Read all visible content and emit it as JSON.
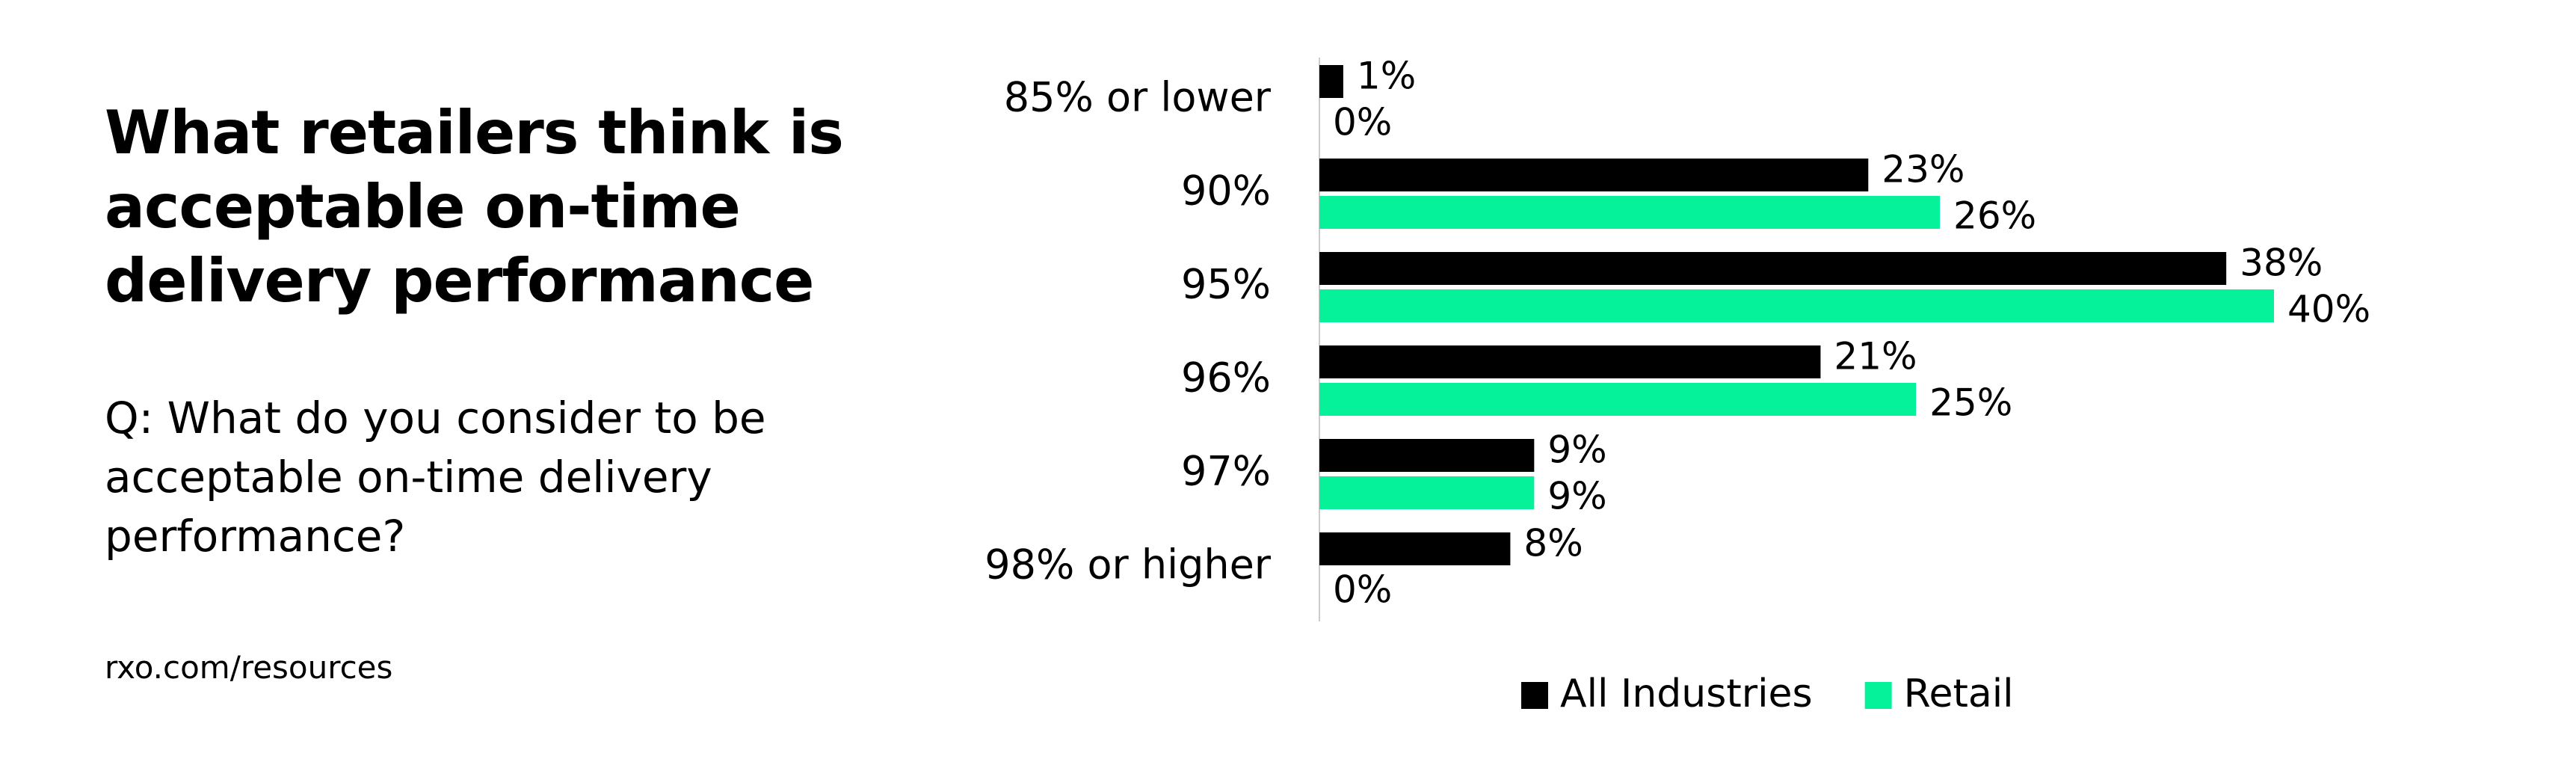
{
  "chart_data": {
    "type": "bar",
    "orientation": "horizontal",
    "title": "What retailers think is acceptable on-time delivery performance",
    "subtitle": "Q: What do you consider to be acceptable on-time delivery performance?",
    "source": "rxo.com/resources",
    "categories": [
      "85% or lower",
      "90%",
      "95%",
      "96%",
      "97%",
      "98% or higher"
    ],
    "series": [
      {
        "name": "All Industries",
        "color": "#000000",
        "values": [
          1,
          23,
          38,
          21,
          9,
          8
        ],
        "value_labels": [
          "1%",
          "23%",
          "38%",
          "21%",
          "9%",
          "8%"
        ]
      },
      {
        "name": "Retail",
        "color": "#05f29b",
        "values": [
          0,
          26,
          40,
          25,
          9,
          0
        ],
        "value_labels": [
          "0%",
          "26%",
          "40%",
          "25%",
          "9%",
          "0%"
        ]
      }
    ],
    "xlim": [
      0,
      40
    ],
    "legend": "bottom"
  }
}
